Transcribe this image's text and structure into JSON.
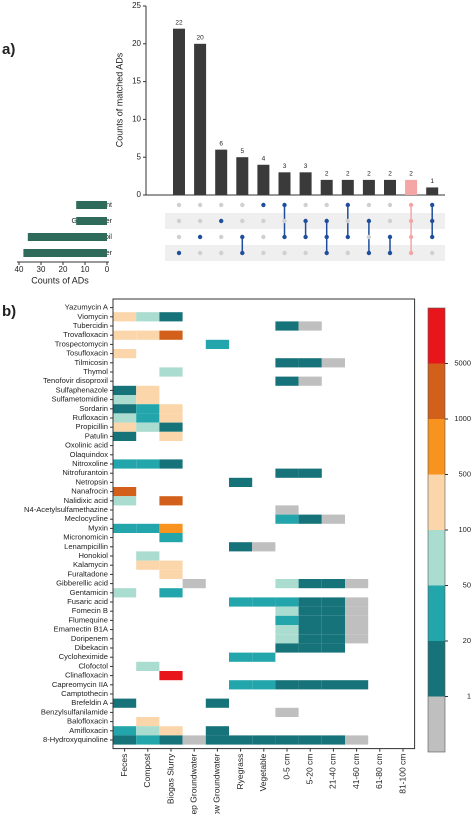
{
  "panel_labels": [
    "a)",
    "b)"
  ],
  "chart_data": [
    {
      "type": "upset",
      "ylabel": "Counts of matched ADs",
      "values": [
        22,
        20,
        6,
        5,
        4,
        3,
        3,
        2,
        2,
        2,
        2,
        2,
        1
      ],
      "bar_colors": [
        "#3a3a3a",
        "#3a3a3a",
        "#3a3a3a",
        "#3a3a3a",
        "#3a3a3a",
        "#3a3a3a",
        "#3a3a3a",
        "#3a3a3a",
        "#3a3a3a",
        "#3a3a3a",
        "#3a3a3a",
        "#f4a6a6",
        "#3a3a3a"
      ],
      "ylim": [
        0,
        25
      ],
      "yticks": [
        0,
        5,
        10,
        15,
        20,
        25
      ],
      "sets": [
        "Plant",
        "Groundwater",
        "Soil",
        "Fertilizer"
      ],
      "set_sizes": [
        14,
        14,
        36,
        38
      ],
      "set_color": "#2e6b5a",
      "xlabel": "Counts of ADs",
      "xlim": [
        40,
        0
      ],
      "xticks": [
        40,
        30,
        20,
        10,
        0
      ],
      "dot_color": "#1f4e9c",
      "intersections": [
        [
          3
        ],
        [
          2
        ],
        [
          1
        ],
        [
          2,
          3
        ],
        [
          0
        ],
        [
          0,
          2
        ],
        [
          1,
          2
        ],
        [
          1,
          2,
          3
        ],
        [
          0,
          2
        ],
        [
          1,
          3
        ],
        [
          2,
          3
        ],
        [
          0,
          1,
          2,
          3
        ],
        [
          0,
          1,
          2
        ]
      ]
    },
    {
      "type": "heatmap",
      "rows": [
        "Yazumycin A",
        "Viomycin",
        "Tubercidin",
        "Trovafloxacin",
        "Trospectomycin",
        "Tosufloxacin",
        "Tilmicosin",
        "Thymol",
        "Tenofovir disoproxil",
        "Sulfaphenazole",
        "Sulfametomidine",
        "Sordarin",
        "Rufloxacin",
        "Propicillin",
        "Patulin",
        "Oxolinic acid",
        "Olaquindox",
        "Nitroxoline",
        "Nitrofurantoin",
        "Netropsin",
        "Nanafrocin",
        "Nalidixic acid",
        "N4-Acetylsulfamethazine",
        "Meclocycline",
        "Myxin",
        "Micronomicin",
        "Lenampicillin",
        "Honokiol",
        "Kalamycin",
        "Furaltadone",
        "Gibberellic acid",
        "Gentamicin",
        "Fusaric acid",
        "Fomecin B",
        "Flumequine",
        "Emamectin B1A",
        "Doripenem",
        "Dibekacin",
        "Cycloheximide",
        "Clofoctol",
        "Clinafloxacin",
        "Capreomycin IIA",
        "Camptothecin",
        "Brefeldin A",
        "Benzylsulfanilamide",
        "Balofloxacin",
        "Amifloxacin",
        "8-Hydroxyquinoline"
      ],
      "columns": [
        "Feces",
        "Compost",
        "Biogas Slurry",
        "Deep Groundwater",
        "Shallow Groundwater",
        "Ryegrass",
        "Vegetable",
        "0-5 cm",
        "5-20 cm",
        "21-40 cm",
        "41-60 cm",
        "61-80 cm",
        "81-100 cm"
      ],
      "values": [
        [
          null,
          null,
          null,
          null,
          null,
          null,
          null,
          null,
          null,
          null,
          null,
          null,
          null
        ],
        [
          300,
          75,
          10,
          null,
          null,
          null,
          null,
          null,
          null,
          null,
          null,
          null,
          null
        ],
        [
          null,
          null,
          null,
          null,
          null,
          null,
          null,
          10,
          0.5,
          null,
          null,
          null,
          null
        ],
        [
          300,
          300,
          3000,
          null,
          null,
          null,
          null,
          null,
          null,
          null,
          null,
          null,
          null
        ],
        [
          null,
          null,
          null,
          null,
          35,
          null,
          null,
          null,
          null,
          null,
          null,
          null,
          null
        ],
        [
          300,
          null,
          null,
          null,
          null,
          null,
          null,
          null,
          null,
          null,
          null,
          null,
          null
        ],
        [
          null,
          null,
          null,
          null,
          null,
          null,
          null,
          10,
          10,
          0.5,
          null,
          null,
          null
        ],
        [
          null,
          null,
          75,
          null,
          null,
          null,
          null,
          null,
          null,
          null,
          null,
          null,
          null
        ],
        [
          null,
          null,
          null,
          null,
          null,
          null,
          null,
          10,
          0.5,
          null,
          null,
          null,
          null
        ],
        [
          10,
          300,
          null,
          null,
          null,
          null,
          null,
          null,
          null,
          null,
          null,
          null,
          null
        ],
        [
          75,
          300,
          null,
          null,
          null,
          null,
          null,
          null,
          null,
          null,
          null,
          null,
          null
        ],
        [
          10,
          35,
          300,
          null,
          null,
          null,
          null,
          null,
          null,
          null,
          null,
          null,
          null
        ],
        [
          75,
          35,
          300,
          null,
          null,
          null,
          null,
          null,
          null,
          null,
          null,
          null,
          null
        ],
        [
          300,
          75,
          10,
          null,
          null,
          null,
          null,
          null,
          null,
          null,
          null,
          null,
          null
        ],
        [
          10,
          null,
          300,
          null,
          null,
          null,
          null,
          null,
          null,
          null,
          null,
          null,
          null
        ],
        [
          null,
          null,
          null,
          null,
          null,
          null,
          null,
          null,
          null,
          null,
          null,
          null,
          null
        ],
        [
          null,
          null,
          null,
          null,
          null,
          null,
          null,
          null,
          null,
          null,
          null,
          null,
          null
        ],
        [
          35,
          35,
          10,
          null,
          null,
          null,
          null,
          null,
          null,
          null,
          null,
          null,
          null
        ],
        [
          null,
          null,
          null,
          null,
          null,
          null,
          null,
          10,
          10,
          null,
          null,
          null,
          null
        ],
        [
          null,
          null,
          null,
          null,
          null,
          10,
          null,
          null,
          null,
          null,
          null,
          null,
          null
        ],
        [
          3000,
          null,
          null,
          null,
          null,
          null,
          null,
          null,
          null,
          null,
          null,
          null,
          null
        ],
        [
          75,
          null,
          3000,
          null,
          null,
          null,
          null,
          null,
          null,
          null,
          null,
          null,
          null
        ],
        [
          null,
          null,
          null,
          null,
          null,
          null,
          null,
          0.5,
          null,
          null,
          null,
          null,
          null
        ],
        [
          null,
          null,
          null,
          null,
          null,
          null,
          null,
          35,
          10,
          0.5,
          null,
          null,
          null
        ],
        [
          35,
          35,
          700,
          null,
          null,
          null,
          null,
          null,
          null,
          null,
          null,
          null,
          null
        ],
        [
          null,
          null,
          35,
          null,
          null,
          null,
          null,
          null,
          null,
          null,
          null,
          null,
          null
        ],
        [
          null,
          null,
          null,
          null,
          null,
          10,
          0.5,
          null,
          null,
          null,
          null,
          null,
          null
        ],
        [
          null,
          75,
          null,
          null,
          null,
          null,
          null,
          null,
          null,
          null,
          null,
          null,
          null
        ],
        [
          null,
          300,
          300,
          null,
          null,
          null,
          null,
          null,
          null,
          null,
          null,
          null,
          null
        ],
        [
          null,
          null,
          300,
          null,
          null,
          null,
          null,
          null,
          null,
          null,
          null,
          null,
          null
        ],
        [
          null,
          null,
          null,
          0.5,
          null,
          null,
          null,
          75,
          10,
          10,
          0.5,
          null,
          null
        ],
        [
          75,
          null,
          35,
          null,
          null,
          null,
          null,
          null,
          null,
          null,
          null,
          null,
          null
        ],
        [
          null,
          null,
          null,
          null,
          null,
          35,
          35,
          35,
          10,
          10,
          0.5,
          null,
          null
        ],
        [
          null,
          null,
          null,
          null,
          null,
          null,
          null,
          75,
          10,
          10,
          0.5,
          null,
          null
        ],
        [
          null,
          null,
          null,
          null,
          null,
          null,
          null,
          35,
          10,
          10,
          0.5,
          null,
          null
        ],
        [
          null,
          null,
          null,
          null,
          null,
          null,
          null,
          75,
          10,
          10,
          0.5,
          null,
          null
        ],
        [
          null,
          null,
          null,
          null,
          null,
          null,
          null,
          75,
          10,
          10,
          0.5,
          null,
          null
        ],
        [
          null,
          null,
          null,
          null,
          null,
          null,
          null,
          10,
          10,
          10,
          null,
          null,
          null
        ],
        [
          null,
          null,
          null,
          null,
          null,
          35,
          35,
          null,
          null,
          null,
          null,
          null,
          null
        ],
        [
          null,
          75,
          null,
          null,
          null,
          null,
          null,
          null,
          null,
          null,
          null,
          null,
          null
        ],
        [
          null,
          null,
          8000,
          null,
          null,
          null,
          null,
          null,
          null,
          null,
          null,
          null,
          null
        ],
        [
          null,
          null,
          null,
          null,
          null,
          35,
          35,
          10,
          10,
          10,
          10,
          null,
          null
        ],
        [
          null,
          null,
          null,
          null,
          null,
          null,
          null,
          null,
          null,
          null,
          null,
          null,
          null
        ],
        [
          10,
          null,
          null,
          null,
          10,
          null,
          null,
          null,
          null,
          null,
          null,
          null,
          null
        ],
        [
          null,
          null,
          null,
          null,
          null,
          null,
          null,
          0.5,
          null,
          null,
          null,
          null,
          null
        ],
        [
          null,
          300,
          null,
          null,
          null,
          null,
          null,
          null,
          null,
          null,
          null,
          null,
          null
        ],
        [
          35,
          75,
          300,
          null,
          10,
          null,
          null,
          null,
          null,
          null,
          null,
          null,
          null
        ],
        [
          10,
          35,
          10,
          0.5,
          10,
          10,
          10,
          10,
          10,
          10,
          0.5,
          null,
          null
        ]
      ],
      "colorbar": {
        "ticks": [
          1,
          20,
          50,
          100,
          500,
          1000,
          5000
        ],
        "colors": [
          "#bfbfbf",
          "#17737a",
          "#23a6ab",
          "#aadccf",
          "#fcd6ab",
          "#f7931e",
          "#d2601a",
          "#e8151b"
        ]
      }
    }
  ]
}
